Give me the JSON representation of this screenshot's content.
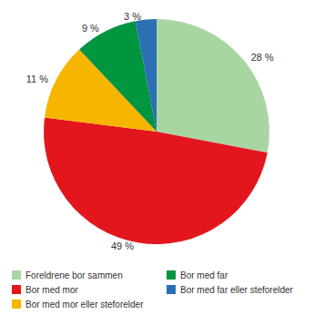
{
  "chart_data": {
    "type": "pie",
    "categories": [
      "Foreldrene bor sammen",
      "Bor med mor",
      "Bor med mor eller steforelder",
      "Bor med far",
      "Bor med far eller steforelder"
    ],
    "values": [
      28,
      49,
      11,
      9,
      3
    ],
    "value_labels": [
      "28 %",
      "49 %",
      "11 %",
      "9 %",
      "3 %"
    ],
    "colors": [
      "#a9d5a3",
      "#e3161e",
      "#f8b500",
      "#00953f",
      "#2b6fb5"
    ],
    "data_labels": true,
    "legend": "bottom"
  }
}
